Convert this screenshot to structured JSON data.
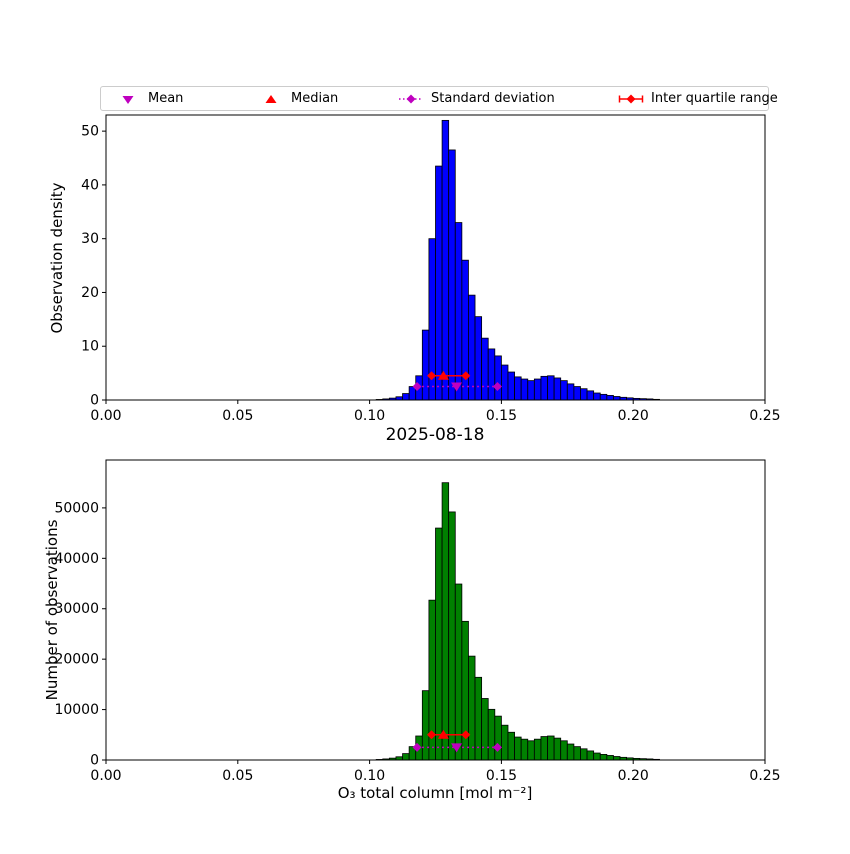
{
  "legend": {
    "items": [
      {
        "label": "Mean",
        "color": "#bf00bf",
        "marker": "triangle-down"
      },
      {
        "label": "Median",
        "color": "#ff0000",
        "marker": "triangle-up"
      },
      {
        "label": "Standard deviation",
        "color": "#bf00bf",
        "marker": "diamond-dotted-line"
      },
      {
        "label": "Inter quartile range",
        "color": "#ff0000",
        "marker": "diamond-solid-line"
      }
    ]
  },
  "chart_data": [
    {
      "type": "bar",
      "subtype": "histogram",
      "ylabel": "Observation density",
      "xlabel": "",
      "title": "",
      "bar_color": "#0000ff",
      "bar_edge_color": "#000000",
      "xlim": [
        0.0,
        0.25
      ],
      "ylim": [
        0,
        53
      ],
      "xticks": [
        0.0,
        0.05,
        0.1,
        0.15,
        0.2,
        0.25
      ],
      "xtick_labels": [
        "0.00",
        "0.05",
        "0.10",
        "0.15",
        "0.20",
        "0.25"
      ],
      "yticks": [
        0,
        10,
        20,
        30,
        40,
        50
      ],
      "ytick_labels": [
        "0",
        "10",
        "20",
        "30",
        "40",
        "50"
      ],
      "bin_start": 0.1025,
      "bin_width": 0.0025,
      "values": [
        0.1,
        0.2,
        0.35,
        0.6,
        1.2,
        2.5,
        4.5,
        13,
        30,
        43.5,
        52,
        46.5,
        33,
        26,
        19.5,
        15.5,
        11.5,
        9.5,
        8.2,
        6.5,
        5.2,
        4.3,
        3.9,
        3.6,
        3.9,
        4.4,
        4.5,
        4.1,
        3.6,
        3.0,
        2.5,
        2.1,
        1.7,
        1.3,
        1.05,
        0.85,
        0.65,
        0.5,
        0.4,
        0.3,
        0.25,
        0.2,
        0.12
      ],
      "markers": {
        "mean": {
          "x": 0.133,
          "y": 2.5,
          "color": "#bf00bf",
          "shape": "triangle-down"
        },
        "median": {
          "x": 0.128,
          "y": 4.5,
          "color": "#ff0000",
          "shape": "triangle-up"
        },
        "std_range": {
          "x1": 0.118,
          "x2": 0.1485,
          "y": 2.5,
          "color": "#bf00bf",
          "style": "dotted",
          "marker": "diamond"
        },
        "iqr_range": {
          "x1": 0.1235,
          "x2": 0.1365,
          "y": 4.5,
          "color": "#ff0000",
          "style": "solid",
          "marker": "diamond"
        }
      }
    },
    {
      "type": "bar",
      "subtype": "histogram",
      "ylabel": "Number of observations",
      "xlabel": "O₃ total column [mol m⁻²]",
      "title": "2025-08-18",
      "bar_color": "#008000",
      "bar_edge_color": "#000000",
      "xlim": [
        0.0,
        0.25
      ],
      "ylim": [
        0,
        59500
      ],
      "xticks": [
        0.0,
        0.05,
        0.1,
        0.15,
        0.2,
        0.25
      ],
      "xtick_labels": [
        "0.00",
        "0.05",
        "0.10",
        "0.15",
        "0.20",
        "0.25"
      ],
      "yticks": [
        0,
        10000,
        20000,
        30000,
        40000,
        50000
      ],
      "ytick_labels": [
        "0",
        "10000",
        "20000",
        "30000",
        "40000",
        "50000"
      ],
      "bin_start": 0.1025,
      "bin_width": 0.0025,
      "values": [
        110,
        210,
        370,
        640,
        1270,
        2650,
        4760,
        13750,
        31700,
        46000,
        55000,
        49200,
        34900,
        27500,
        20600,
        16400,
        12200,
        10050,
        8700,
        6900,
        5500,
        4550,
        4130,
        3810,
        4130,
        4650,
        4760,
        4340,
        3810,
        3170,
        2650,
        2220,
        1800,
        1380,
        1110,
        900,
        690,
        530,
        420,
        320,
        265,
        210,
        130
      ],
      "markers": {
        "mean": {
          "x": 0.133,
          "y": 2500,
          "color": "#bf00bf",
          "shape": "triangle-down"
        },
        "median": {
          "x": 0.128,
          "y": 5000,
          "color": "#ff0000",
          "shape": "triangle-up"
        },
        "std_range": {
          "x1": 0.118,
          "x2": 0.1485,
          "y": 2500,
          "color": "#bf00bf",
          "style": "dotted",
          "marker": "diamond"
        },
        "iqr_range": {
          "x1": 0.1235,
          "x2": 0.1365,
          "y": 5000,
          "color": "#ff0000",
          "style": "solid",
          "marker": "diamond"
        }
      }
    }
  ]
}
